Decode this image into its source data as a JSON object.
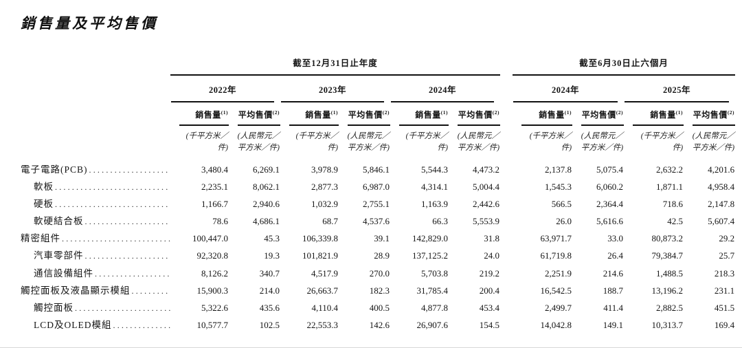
{
  "title": "銷售量及平均售價",
  "table": {
    "groups": [
      {
        "label": "截至12月31日止年度",
        "years": [
          "2022年",
          "2023年",
          "2024年"
        ]
      },
      {
        "label": "截至6月30日止六個月",
        "years": [
          "2024年",
          "2025年"
        ]
      }
    ],
    "subheader": {
      "sales_label": "銷售量",
      "sales_note": "(1)",
      "asp_label": "平均售價",
      "asp_note": "(2)"
    },
    "units": {
      "sales_lines": [
        "(千平方米／",
        "件)"
      ],
      "asp_lines": [
        "(人民幣元／",
        "平方米／件)"
      ]
    },
    "rows": [
      {
        "label": "電子電路(PCB)",
        "indent": false,
        "values": [
          "3,480.4",
          "6,269.1",
          "3,978.9",
          "5,846.1",
          "5,544.3",
          "4,473.2",
          "2,137.8",
          "5,075.4",
          "2,632.2",
          "4,201.6"
        ]
      },
      {
        "label": "軟板",
        "indent": true,
        "values": [
          "2,235.1",
          "8,062.1",
          "2,877.3",
          "6,987.0",
          "4,314.1",
          "5,004.4",
          "1,545.3",
          "6,060.2",
          "1,871.1",
          "4,958.4"
        ]
      },
      {
        "label": "硬板",
        "indent": true,
        "values": [
          "1,166.7",
          "2,940.6",
          "1,032.9",
          "2,755.1",
          "1,163.9",
          "2,442.6",
          "566.5",
          "2,364.4",
          "718.6",
          "2,147.8"
        ]
      },
      {
        "label": "軟硬結合板",
        "indent": true,
        "values": [
          "78.6",
          "4,686.1",
          "68.7",
          "4,537.6",
          "66.3",
          "5,553.9",
          "26.0",
          "5,616.6",
          "42.5",
          "5,607.4"
        ]
      },
      {
        "label": "精密組件",
        "indent": false,
        "values": [
          "100,447.0",
          "45.3",
          "106,339.8",
          "39.1",
          "142,829.0",
          "31.8",
          "63,971.7",
          "33.0",
          "80,873.2",
          "29.2"
        ]
      },
      {
        "label": "汽車零部件",
        "indent": true,
        "values": [
          "92,320.8",
          "19.3",
          "101,821.9",
          "28.9",
          "137,125.2",
          "24.0",
          "61,719.8",
          "26.4",
          "79,384.7",
          "25.7"
        ]
      },
      {
        "label": "通信設備組件",
        "indent": true,
        "values": [
          "8,126.2",
          "340.7",
          "4,517.9",
          "270.0",
          "5,703.8",
          "219.2",
          "2,251.9",
          "214.6",
          "1,488.5",
          "218.3"
        ]
      },
      {
        "label": "觸控面板及液晶顯示模組",
        "indent": false,
        "values": [
          "15,900.3",
          "214.0",
          "26,663.7",
          "182.3",
          "31,785.4",
          "200.4",
          "16,542.5",
          "188.7",
          "13,196.2",
          "231.1"
        ]
      },
      {
        "label": "觸控面板",
        "indent": true,
        "values": [
          "5,322.6",
          "435.6",
          "4,110.4",
          "400.5",
          "4,877.8",
          "453.4",
          "2,499.7",
          "411.4",
          "2,882.5",
          "451.5"
        ]
      },
      {
        "label": "LCD及OLED模組",
        "indent": true,
        "values": [
          "10,577.7",
          "102.5",
          "22,553.3",
          "142.6",
          "26,907.6",
          "154.5",
          "14,042.8",
          "149.1",
          "10,313.7",
          "169.4"
        ]
      }
    ]
  }
}
